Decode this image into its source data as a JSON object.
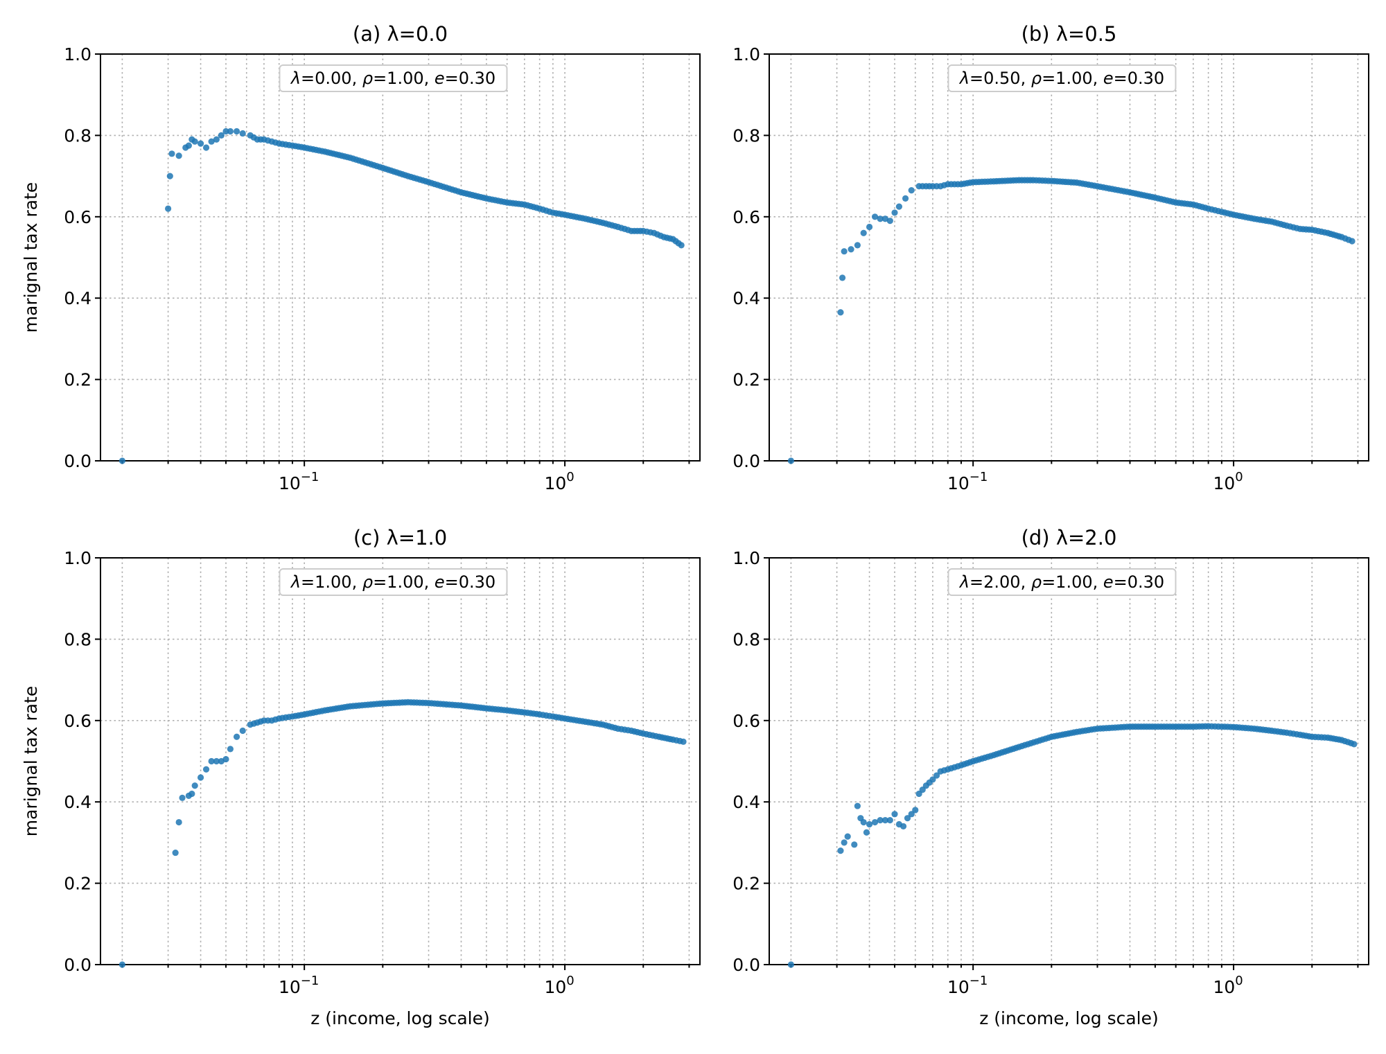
{
  "figure": {
    "x_axis_label": "z (income, log scale)",
    "y_axis_label": "marignal tax rate"
  },
  "chart_data": [
    {
      "type": "scatter",
      "title": "(a) λ=0.0",
      "xlabel": "",
      "ylabel": "marignal tax rate",
      "xscale": "log",
      "xlim": [
        0.0165,
        3.3
      ],
      "ylim": [
        0.0,
        1.0
      ],
      "yticks": [
        "0.0",
        "0.2",
        "0.4",
        "0.6",
        "0.8",
        "1.0"
      ],
      "xticks": [
        {
          "base": "10",
          "exp": "−1"
        },
        {
          "base": "10",
          "exp": "0"
        }
      ],
      "grid": true,
      "annotation": {
        "lam": "0.00",
        "rho": "1.00",
        "e": "0.30"
      },
      "color": "#1f77b4",
      "x": [
        0.02,
        0.03,
        0.0305,
        0.031,
        0.033,
        0.035,
        0.036,
        0.037,
        0.038,
        0.04,
        0.042,
        0.044,
        0.046,
        0.048,
        0.05,
        0.052,
        0.055,
        0.058,
        0.062,
        0.066,
        0.07,
        0.075,
        0.08,
        0.09,
        0.1,
        0.12,
        0.15,
        0.2,
        0.25,
        0.3,
        0.4,
        0.5,
        0.6,
        0.7,
        0.8,
        0.9,
        1.0,
        1.2,
        1.4,
        1.6,
        1.8,
        2.0,
        2.2,
        2.4,
        2.6,
        2.8
      ],
      "y": [
        0.0,
        0.62,
        0.7,
        0.755,
        0.75,
        0.77,
        0.775,
        0.79,
        0.785,
        0.78,
        0.77,
        0.785,
        0.79,
        0.8,
        0.81,
        0.81,
        0.81,
        0.805,
        0.8,
        0.79,
        0.79,
        0.785,
        0.78,
        0.775,
        0.77,
        0.76,
        0.745,
        0.72,
        0.7,
        0.685,
        0.66,
        0.645,
        0.635,
        0.63,
        0.62,
        0.61,
        0.605,
        0.595,
        0.585,
        0.575,
        0.565,
        0.565,
        0.56,
        0.55,
        0.545,
        0.53
      ]
    },
    {
      "type": "scatter",
      "title": "(b) λ=0.5",
      "xlabel": "",
      "ylabel": "",
      "xscale": "log",
      "xlim": [
        0.0165,
        3.3
      ],
      "ylim": [
        0.0,
        1.0
      ],
      "yticks": [
        "0.0",
        "0.2",
        "0.4",
        "0.6",
        "0.8",
        "1.0"
      ],
      "xticks": [
        {
          "base": "10",
          "exp": "−1"
        },
        {
          "base": "10",
          "exp": "0"
        }
      ],
      "grid": true,
      "annotation": {
        "lam": "0.50",
        "rho": "1.00",
        "e": "0.30"
      },
      "color": "#1f77b4",
      "x": [
        0.02,
        0.031,
        0.0315,
        0.032,
        0.034,
        0.036,
        0.038,
        0.04,
        0.042,
        0.044,
        0.046,
        0.048,
        0.05,
        0.052,
        0.055,
        0.058,
        0.062,
        0.066,
        0.07,
        0.075,
        0.08,
        0.09,
        0.1,
        0.12,
        0.15,
        0.17,
        0.2,
        0.25,
        0.3,
        0.4,
        0.5,
        0.6,
        0.7,
        0.8,
        0.9,
        1.0,
        1.2,
        1.4,
        1.6,
        1.8,
        2.0,
        2.3,
        2.6,
        2.85
      ],
      "y": [
        0.0,
        0.365,
        0.45,
        0.515,
        0.52,
        0.53,
        0.56,
        0.575,
        0.6,
        0.595,
        0.595,
        0.59,
        0.61,
        0.625,
        0.645,
        0.665,
        0.675,
        0.675,
        0.675,
        0.675,
        0.68,
        0.68,
        0.685,
        0.687,
        0.69,
        0.69,
        0.688,
        0.684,
        0.675,
        0.66,
        0.647,
        0.635,
        0.63,
        0.62,
        0.612,
        0.605,
        0.595,
        0.588,
        0.578,
        0.57,
        0.568,
        0.56,
        0.55,
        0.54
      ]
    },
    {
      "type": "scatter",
      "title": "(c) λ=1.0",
      "xlabel": "z (income, log scale)",
      "ylabel": "marignal tax rate",
      "xscale": "log",
      "xlim": [
        0.0165,
        3.3
      ],
      "ylim": [
        0.0,
        1.0
      ],
      "yticks": [
        "0.0",
        "0.2",
        "0.4",
        "0.6",
        "0.8",
        "1.0"
      ],
      "xticks": [
        {
          "base": "10",
          "exp": "−1"
        },
        {
          "base": "10",
          "exp": "0"
        }
      ],
      "grid": true,
      "annotation": {
        "lam": "1.00",
        "rho": "1.00",
        "e": "0.30"
      },
      "color": "#1f77b4",
      "x": [
        0.02,
        0.032,
        0.033,
        0.034,
        0.036,
        0.037,
        0.038,
        0.04,
        0.042,
        0.044,
        0.046,
        0.048,
        0.05,
        0.052,
        0.055,
        0.058,
        0.062,
        0.066,
        0.07,
        0.075,
        0.08,
        0.09,
        0.1,
        0.12,
        0.15,
        0.2,
        0.25,
        0.3,
        0.4,
        0.5,
        0.6,
        0.7,
        0.8,
        0.9,
        1.0,
        1.2,
        1.4,
        1.6,
        1.8,
        2.0,
        2.3,
        2.6,
        2.85
      ],
      "y": [
        0.0,
        0.275,
        0.35,
        0.41,
        0.415,
        0.42,
        0.44,
        0.46,
        0.48,
        0.5,
        0.5,
        0.5,
        0.505,
        0.53,
        0.56,
        0.575,
        0.59,
        0.595,
        0.6,
        0.6,
        0.605,
        0.61,
        0.615,
        0.625,
        0.635,
        0.642,
        0.645,
        0.643,
        0.637,
        0.63,
        0.625,
        0.62,
        0.615,
        0.61,
        0.605,
        0.597,
        0.59,
        0.58,
        0.575,
        0.568,
        0.56,
        0.553,
        0.548
      ]
    },
    {
      "type": "scatter",
      "title": "(d) λ=2.0",
      "xlabel": "z (income, log scale)",
      "ylabel": "",
      "xscale": "log",
      "xlim": [
        0.0165,
        3.3
      ],
      "ylim": [
        0.0,
        1.0
      ],
      "yticks": [
        "0.0",
        "0.2",
        "0.4",
        "0.6",
        "0.8",
        "1.0"
      ],
      "xticks": [
        {
          "base": "10",
          "exp": "−1"
        },
        {
          "base": "10",
          "exp": "0"
        }
      ],
      "grid": true,
      "annotation": {
        "lam": "2.00",
        "rho": "1.00",
        "e": "0.30"
      },
      "color": "#1f77b4",
      "x": [
        0.02,
        0.031,
        0.032,
        0.033,
        0.035,
        0.036,
        0.037,
        0.038,
        0.039,
        0.04,
        0.042,
        0.044,
        0.046,
        0.048,
        0.05,
        0.052,
        0.054,
        0.056,
        0.058,
        0.06,
        0.062,
        0.066,
        0.07,
        0.075,
        0.08,
        0.09,
        0.1,
        0.12,
        0.15,
        0.2,
        0.25,
        0.3,
        0.4,
        0.5,
        0.6,
        0.7,
        0.8,
        0.9,
        1.0,
        1.2,
        1.4,
        1.6,
        1.8,
        2.0,
        2.3,
        2.6,
        2.9
      ],
      "y": [
        0.0,
        0.28,
        0.3,
        0.315,
        0.295,
        0.39,
        0.36,
        0.35,
        0.325,
        0.345,
        0.35,
        0.355,
        0.355,
        0.355,
        0.37,
        0.345,
        0.34,
        0.36,
        0.37,
        0.38,
        0.42,
        0.44,
        0.455,
        0.475,
        0.48,
        0.49,
        0.5,
        0.515,
        0.535,
        0.56,
        0.572,
        0.58,
        0.585,
        0.585,
        0.585,
        0.585,
        0.586,
        0.585,
        0.584,
        0.58,
        0.575,
        0.57,
        0.565,
        0.56,
        0.558,
        0.552,
        0.542
      ]
    }
  ]
}
